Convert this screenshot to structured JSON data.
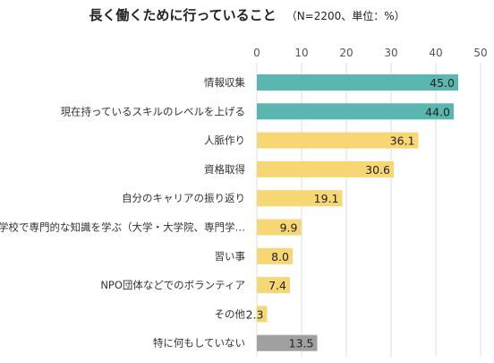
{
  "chart_data": {
    "type": "bar",
    "orientation": "horizontal",
    "title": "長く働くために行っていること",
    "subtitle": "（N=2200、単位：%）",
    "categories": [
      "情報収集",
      "現在持っているスキルのレベルを上げる",
      "人脈作り",
      "資格取得",
      "自分のキャリアの振り返り",
      "学校で専門的な知識を学ぶ（大学・大学院、専門学…",
      "習い事",
      "NPO団体などでのボランティア",
      "その他",
      "特に何もしていない"
    ],
    "values": [
      45.0,
      44.0,
      36.1,
      30.6,
      19.1,
      9.9,
      8.0,
      7.4,
      2.3,
      13.5
    ],
    "value_labels": [
      "45.0",
      "44.0",
      "36.1",
      "30.6",
      "19.1",
      "9.9",
      "8.0",
      "7.4",
      "2.3",
      "13.5"
    ],
    "bar_colors": [
      "#5ab7b0",
      "#5ab7b0",
      "#f7d774",
      "#f7d774",
      "#f7d774",
      "#f7d774",
      "#f7d774",
      "#f7d774",
      "#f7d774",
      "#a0a0a0"
    ],
    "xlim": [
      0,
      50
    ],
    "ticks": [
      0,
      10,
      20,
      30,
      40,
      50
    ],
    "tick_labels": [
      "0",
      "10",
      "20",
      "30",
      "40",
      "50"
    ],
    "axis_position": "top",
    "grid": true,
    "legend": "none"
  }
}
